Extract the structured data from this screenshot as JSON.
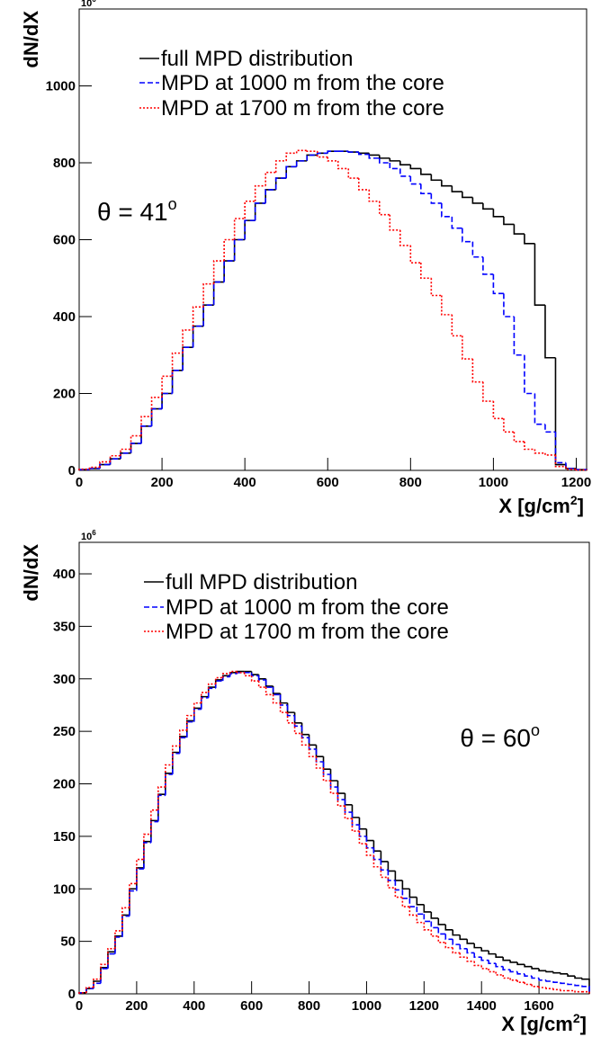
{
  "chart_data": [
    {
      "type": "histogram",
      "y_label": "dN/dX",
      "y_exponent_base": "10",
      "y_exponent_power": "6",
      "x_label": "X  [g/cm",
      "x_label_power": "2",
      "x_label_end": "]",
      "annotation": "θ = 41",
      "annotation_power": "o",
      "xlim": [
        0,
        1225
      ],
      "ylim": [
        0,
        1200
      ],
      "xticks": [
        0,
        200,
        400,
        600,
        800,
        1000,
        1200
      ],
      "yticks": [
        0,
        200,
        400,
        600,
        800,
        1000
      ],
      "bins": [
        0,
        25,
        50,
        75,
        100,
        125,
        150,
        175,
        200,
        225,
        250,
        275,
        300,
        325,
        350,
        375,
        400,
        425,
        450,
        475,
        500,
        525,
        550,
        575,
        600,
        625,
        650,
        675,
        700,
        725,
        750,
        775,
        800,
        825,
        850,
        875,
        900,
        925,
        950,
        975,
        1000,
        1025,
        1050,
        1075,
        1100,
        1125,
        1150,
        1175,
        1200,
        1225
      ],
      "series": [
        {
          "name": "full MPD distribution",
          "color": "#000000",
          "linestyle": "solid",
          "values": [
            2,
            5,
            15,
            30,
            45,
            70,
            115,
            160,
            200,
            260,
            320,
            375,
            430,
            490,
            545,
            600,
            650,
            695,
            730,
            760,
            790,
            805,
            820,
            825,
            830,
            830,
            828,
            825,
            820,
            812,
            805,
            795,
            785,
            770,
            755,
            740,
            725,
            710,
            695,
            680,
            660,
            640,
            615,
            590,
            430,
            293,
            15,
            5,
            2
          ]
        },
        {
          "name": "MPD at 1000 m from the core",
          "color": "#0000ff",
          "linestyle": "dashed",
          "values": [
            2,
            5,
            15,
            30,
            45,
            70,
            115,
            160,
            200,
            260,
            320,
            375,
            430,
            490,
            545,
            600,
            650,
            695,
            730,
            760,
            790,
            805,
            820,
            825,
            830,
            830,
            828,
            822,
            812,
            800,
            785,
            765,
            745,
            720,
            695,
            660,
            630,
            595,
            555,
            510,
            460,
            400,
            300,
            200,
            120,
            100,
            20,
            5,
            2
          ]
        },
        {
          "name": "MPD at 1700 m from the core",
          "color": "#ff0000",
          "linestyle": "dotted",
          "values": [
            3,
            8,
            22,
            38,
            55,
            90,
            140,
            190,
            245,
            305,
            365,
            425,
            485,
            545,
            600,
            655,
            700,
            740,
            775,
            805,
            825,
            832,
            830,
            815,
            805,
            785,
            760,
            730,
            700,
            665,
            625,
            585,
            540,
            500,
            455,
            405,
            350,
            290,
            230,
            180,
            135,
            100,
            75,
            55,
            45,
            40,
            10,
            3,
            1
          ]
        }
      ]
    },
    {
      "type": "histogram",
      "y_label": "dN/dX",
      "y_exponent_base": "10",
      "y_exponent_power": "6",
      "x_label": "X  [g/cm",
      "x_label_power": "2",
      "x_label_end": "]",
      "annotation": "θ = 60",
      "annotation_power": "o",
      "xlim": [
        0,
        1775
      ],
      "ylim": [
        0,
        430
      ],
      "xticks": [
        0,
        200,
        400,
        600,
        800,
        1000,
        1200,
        1400,
        1600
      ],
      "yticks": [
        0,
        50,
        100,
        150,
        200,
        250,
        300,
        350,
        400
      ],
      "bins": [
        0,
        25,
        50,
        75,
        100,
        125,
        150,
        175,
        200,
        225,
        250,
        275,
        300,
        325,
        350,
        375,
        400,
        425,
        450,
        475,
        500,
        525,
        550,
        575,
        600,
        625,
        650,
        675,
        700,
        725,
        750,
        775,
        800,
        825,
        850,
        875,
        900,
        925,
        950,
        975,
        1000,
        1025,
        1050,
        1075,
        1100,
        1125,
        1150,
        1175,
        1200,
        1225,
        1250,
        1275,
        1300,
        1325,
        1350,
        1375,
        1400,
        1425,
        1450,
        1475,
        1500,
        1525,
        1550,
        1575,
        1600,
        1625,
        1650,
        1675,
        1700,
        1725,
        1750,
        1775
      ],
      "series": [
        {
          "name": "full MPD distribution",
          "color": "#000000",
          "linestyle": "solid",
          "values": [
            1,
            5,
            12,
            25,
            40,
            55,
            75,
            100,
            120,
            145,
            165,
            190,
            210,
            230,
            245,
            260,
            272,
            283,
            292,
            299,
            303,
            306,
            307,
            307,
            304,
            300,
            293,
            286,
            277,
            268,
            258,
            247,
            237,
            226,
            214,
            203,
            191,
            180,
            168,
            157,
            146,
            136,
            126,
            117,
            108,
            100,
            92,
            85,
            78,
            72,
            66,
            61,
            56,
            52,
            48,
            44,
            41,
            38,
            35,
            32,
            30,
            28,
            26,
            24,
            22,
            21,
            20,
            19,
            17,
            15,
            14
          ]
        },
        {
          "name": "MPD at 1000 m from the core",
          "color": "#0000ff",
          "linestyle": "dashed",
          "values": [
            1,
            5,
            10,
            24,
            38,
            54,
            74,
            98,
            119,
            144,
            164,
            189,
            209,
            229,
            244,
            259,
            271,
            282,
            291,
            298,
            302,
            305,
            306,
            306,
            303,
            299,
            292,
            285,
            275,
            265,
            255,
            244,
            233,
            221,
            209,
            197,
            185,
            173,
            161,
            150,
            139,
            128,
            118,
            108,
            99,
            91,
            83,
            76,
            69,
            63,
            57,
            52,
            47,
            43,
            39,
            35,
            32,
            29,
            26,
            23,
            21,
            19,
            17,
            15,
            13,
            12,
            11,
            10,
            9,
            8,
            7
          ]
        },
        {
          "name": "MPD at 1700 m from the core",
          "color": "#ff0000",
          "linestyle": "dotted",
          "values": [
            1,
            6,
            14,
            28,
            43,
            60,
            82,
            105,
            128,
            152,
            175,
            197,
            218,
            236,
            251,
            265,
            277,
            287,
            295,
            301,
            305,
            307,
            306,
            303,
            298,
            292,
            285,
            277,
            268,
            258,
            248,
            237,
            226,
            215,
            203,
            191,
            179,
            167,
            155,
            143,
            132,
            121,
            111,
            101,
            92,
            83,
            75,
            68,
            61,
            55,
            49,
            44,
            39,
            35,
            31,
            27,
            24,
            21,
            18,
            15,
            13,
            11,
            9,
            7,
            6,
            5,
            4,
            3,
            3,
            2,
            2
          ]
        }
      ]
    }
  ]
}
